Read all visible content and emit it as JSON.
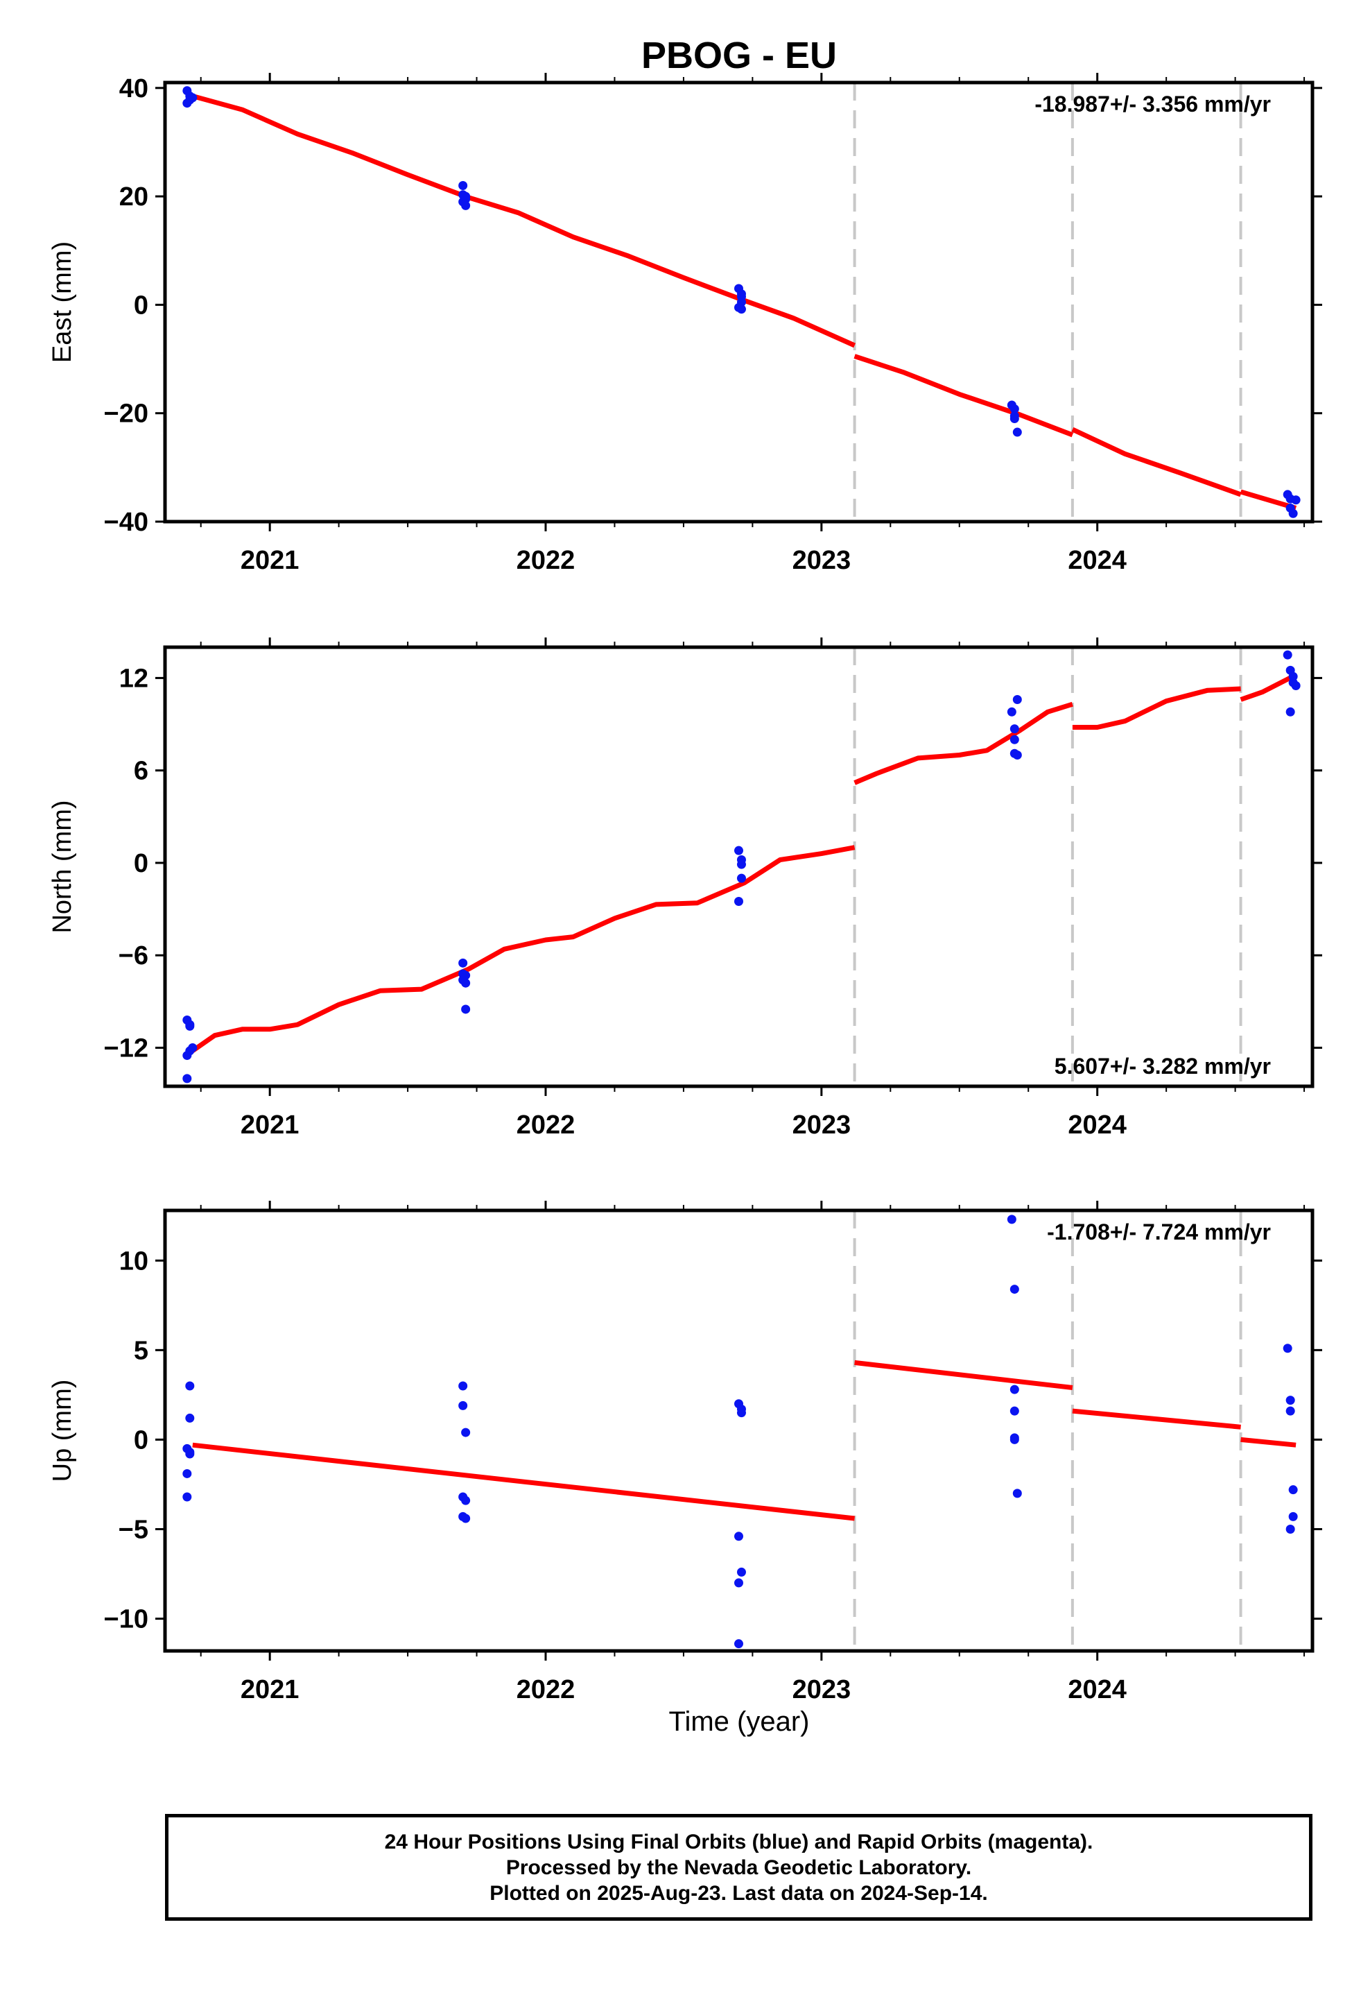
{
  "title": "PBOG - EU",
  "xlabel": "Time (year)",
  "colors": {
    "data_points": "#0a14f0",
    "model_fit": "#ff0000",
    "breaks": "#c8c8c8",
    "frame": "#000000"
  },
  "chart_data": [
    {
      "type": "scatter",
      "name": "east",
      "ylabel": "East (mm)",
      "rate_label": "-18.987+/- 3.356 mm/yr",
      "rate_position": "top-right",
      "xlim": [
        2020.62,
        2024.78
      ],
      "ylim": [
        -40,
        41
      ],
      "yticks": [
        40,
        20,
        0,
        -20,
        -40
      ],
      "ytick_labels": [
        "40",
        "20",
        "0",
        "−20",
        "−40"
      ],
      "xticks": [
        2021,
        2022,
        2023,
        2024
      ],
      "xtick_labels": [
        "2021",
        "2022",
        "2023",
        "2024"
      ],
      "breaks": [
        2023.12,
        2023.91,
        2024.52
      ],
      "grid": false,
      "series": [
        {
          "name": "",
          "kind": "points",
          "x": [
            2020.7,
            2020.71,
            2020.71,
            2020.72,
            2020.7,
            2021.7,
            2021.71,
            2021.7,
            2021.71,
            2021.7,
            2021.71,
            2022.7,
            2022.71,
            2022.71,
            2022.7,
            2022.71,
            2022.71,
            2023.69,
            2023.7,
            2023.7,
            2023.71,
            2023.7,
            2024.69,
            2024.7,
            2024.71,
            2024.72,
            2024.7
          ],
          "y": [
            39.5,
            38.5,
            37.8,
            38.2,
            37.2,
            22.0,
            19.5,
            20.3,
            18.3,
            19.0,
            20.0,
            3.0,
            1.5,
            0.5,
            -0.5,
            -0.8,
            2.0,
            -18.5,
            -19.2,
            -21.0,
            -23.5,
            -20.5,
            -35.0,
            -35.8,
            -38.5,
            -36.0,
            -37.5
          ]
        },
        {
          "name": "",
          "kind": "model",
          "segments": [
            {
              "x": [
                2020.72,
                2020.9,
                2021.1,
                2021.3,
                2021.5,
                2021.72,
                2021.9,
                2022.1,
                2022.3,
                2022.5,
                2022.72,
                2022.9,
                2023.12
              ],
              "y": [
                38.5,
                36.0,
                31.5,
                28.0,
                24.0,
                19.8,
                17.0,
                12.5,
                9.0,
                5.0,
                0.8,
                -2.5,
                -7.5
              ]
            },
            {
              "x": [
                2023.12,
                2023.3,
                2023.5,
                2023.72,
                2023.91
              ],
              "y": [
                -9.5,
                -12.5,
                -16.5,
                -20.3,
                -24.0
              ]
            },
            {
              "x": [
                2023.91,
                2024.1,
                2024.3,
                2024.52
              ],
              "y": [
                -23.0,
                -27.5,
                -31.0,
                -35.0
              ]
            },
            {
              "x": [
                2024.52,
                2024.72
              ],
              "y": [
                -34.5,
                -37.5
              ]
            }
          ]
        }
      ]
    },
    {
      "type": "scatter",
      "name": "north",
      "ylabel": "North (mm)",
      "rate_label": "5.607+/- 3.282 mm/yr",
      "rate_position": "bottom-right",
      "xlim": [
        2020.62,
        2024.78
      ],
      "ylim": [
        -14.5,
        14
      ],
      "yticks": [
        12,
        6,
        0,
        -6,
        -12
      ],
      "ytick_labels": [
        "12",
        "6",
        "0",
        "−6",
        "−12"
      ],
      "xticks": [
        2021,
        2022,
        2023,
        2024
      ],
      "xtick_labels": [
        "2021",
        "2022",
        "2023",
        "2024"
      ],
      "breaks": [
        2023.12,
        2023.91,
        2024.52
      ],
      "grid": false,
      "series": [
        {
          "name": "",
          "kind": "points",
          "x": [
            2020.7,
            2020.71,
            2020.71,
            2020.72,
            2020.7,
            2020.7,
            2020.71,
            2021.7,
            2021.7,
            2021.71,
            2021.71,
            2021.7,
            2021.71,
            2022.7,
            2022.71,
            2022.71,
            2022.7,
            2022.71,
            2023.69,
            2023.7,
            2023.7,
            2023.71,
            2023.7,
            2023.71,
            2024.69,
            2024.7,
            2024.71,
            2024.72,
            2024.7,
            2024.71
          ],
          "y": [
            -10.2,
            -10.6,
            -12.2,
            -12.0,
            -12.5,
            -14.0,
            -10.5,
            -6.5,
            -7.2,
            -7.8,
            -9.5,
            -7.6,
            -7.3,
            0.8,
            0.2,
            -1.0,
            -2.5,
            -0.1,
            9.8,
            8.7,
            8.0,
            7.0,
            7.1,
            10.6,
            13.5,
            12.5,
            12.1,
            11.5,
            9.8,
            11.7
          ]
        },
        {
          "name": "",
          "kind": "model",
          "segments": [
            {
              "x": [
                2020.72,
                2020.8,
                2020.9,
                2021.0,
                2021.1,
                2021.25,
                2021.4,
                2021.55,
                2021.72,
                2021.85,
                2022.0,
                2022.1,
                2022.25,
                2022.4,
                2022.55,
                2022.72,
                2022.85,
                2023.0,
                2023.12
              ],
              "y": [
                -12.2,
                -11.2,
                -10.8,
                -10.8,
                -10.5,
                -9.2,
                -8.3,
                -8.2,
                -6.9,
                -5.6,
                -5.0,
                -4.8,
                -3.6,
                -2.7,
                -2.6,
                -1.3,
                0.2,
                0.6,
                1.0
              ]
            },
            {
              "x": [
                2023.12,
                2023.2,
                2023.35,
                2023.5,
                2023.6,
                2023.72,
                2023.82,
                2023.91
              ],
              "y": [
                5.2,
                5.8,
                6.8,
                7.0,
                7.3,
                8.6,
                9.8,
                10.3
              ]
            },
            {
              "x": [
                2023.91,
                2024.0,
                2024.1,
                2024.25,
                2024.4,
                2024.52
              ],
              "y": [
                8.8,
                8.8,
                9.2,
                10.5,
                11.2,
                11.3
              ]
            },
            {
              "x": [
                2024.52,
                2024.6,
                2024.72
              ],
              "y": [
                10.6,
                11.1,
                12.2
              ]
            }
          ]
        }
      ]
    },
    {
      "type": "scatter",
      "name": "up",
      "ylabel": "Up (mm)",
      "rate_label": "-1.708+/- 7.724 mm/yr",
      "rate_position": "top-right",
      "xlim": [
        2020.62,
        2024.78
      ],
      "ylim": [
        -11.8,
        12.8
      ],
      "yticks": [
        10,
        5,
        0,
        -5,
        -10
      ],
      "ytick_labels": [
        "10",
        "5",
        "0",
        "−5",
        "−10"
      ],
      "xticks": [
        2021,
        2022,
        2023,
        2024
      ],
      "xtick_labels": [
        "2021",
        "2022",
        "2023",
        "2024"
      ],
      "breaks": [
        2023.12,
        2023.91,
        2024.52
      ],
      "grid": false,
      "series": [
        {
          "name": "",
          "kind": "points",
          "x": [
            2020.71,
            2020.71,
            2020.7,
            2020.71,
            2020.7,
            2020.7,
            2020.71,
            2021.7,
            2021.7,
            2021.71,
            2021.7,
            2021.7,
            2021.71,
            2021.71,
            2022.7,
            2022.71,
            2022.7,
            2022.7,
            2022.71,
            2022.7,
            2022.71,
            2023.69,
            2023.7,
            2023.7,
            2023.7,
            2023.7,
            2023.71,
            2023.7,
            2024.69,
            2024.7,
            2024.7,
            2024.71,
            2024.71,
            2024.7
          ],
          "y": [
            3.0,
            1.2,
            -0.5,
            -0.8,
            -1.9,
            -3.2,
            -0.7,
            3.0,
            1.9,
            0.4,
            -3.2,
            -4.3,
            -4.4,
            -3.4,
            2.0,
            1.5,
            -5.4,
            -8.0,
            -7.4,
            -11.4,
            1.7,
            12.3,
            8.4,
            2.8,
            1.6,
            0.1,
            -3.0,
            0.0,
            5.1,
            2.2,
            1.6,
            -2.8,
            -4.3,
            -5.0
          ]
        },
        {
          "name": "",
          "kind": "model",
          "segments": [
            {
              "x": [
                2020.72,
                2023.12
              ],
              "y": [
                -0.3,
                -4.4
              ]
            },
            {
              "x": [
                2023.12,
                2023.91
              ],
              "y": [
                4.3,
                2.9
              ]
            },
            {
              "x": [
                2023.91,
                2024.52
              ],
              "y": [
                1.6,
                0.7
              ]
            },
            {
              "x": [
                2024.52,
                2024.72
              ],
              "y": [
                0.0,
                -0.3
              ]
            }
          ]
        }
      ]
    }
  ],
  "footer": {
    "line1": "24 Hour Positions Using Final Orbits (blue) and Rapid Orbits (magenta).",
    "line2": "Processed by the Nevada Geodetic Laboratory.",
    "line3": "Plotted on 2025-Aug-23. Last data on 2024-Sep-14."
  }
}
